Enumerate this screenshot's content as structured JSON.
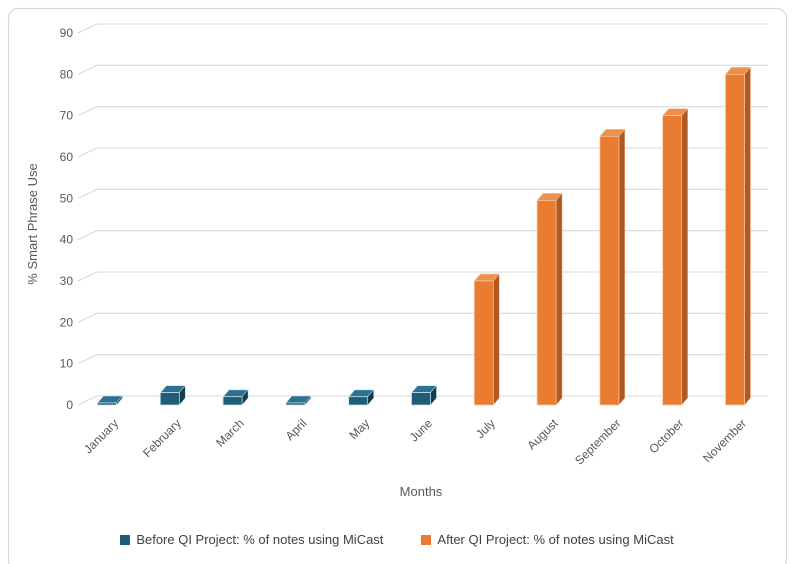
{
  "chart_data": {
    "type": "bar",
    "variant": "3d-clustered-column",
    "title": "",
    "xlabel": "Months",
    "ylabel": "% Smart Phrase Use",
    "ylim": [
      0,
      90
    ],
    "y_ticks": [
      0,
      10,
      20,
      30,
      40,
      50,
      60,
      70,
      80,
      90
    ],
    "grid": true,
    "legend_position": "bottom",
    "categories": [
      "January",
      "February",
      "March",
      "April",
      "May",
      "June",
      "July",
      "August",
      "September",
      "October",
      "November"
    ],
    "series": [
      {
        "name": "Before QI Project: % of notes using MiCast",
        "color": "#1F5C78",
        "color_top": "#2C7191",
        "color_side": "#123C50",
        "edge_color": "#cfe3ec",
        "values": [
          0.5,
          3,
          2,
          0.5,
          2,
          3,
          0,
          0,
          0,
          0,
          0
        ]
      },
      {
        "name": "After QI Project: % of notes using MiCast",
        "color": "#E97C31",
        "color_top": "#EE8F4D",
        "color_side": "#AF5A21",
        "edge_color": "#F5C9A4",
        "values": [
          0,
          0,
          0,
          0,
          0,
          0,
          30,
          49.5,
          65,
          70,
          80
        ]
      }
    ],
    "gridline_color": "#DADADA",
    "border_color": "#D8D8D8",
    "tick_label_color": "#595959",
    "legend_text_color": "#404040"
  }
}
